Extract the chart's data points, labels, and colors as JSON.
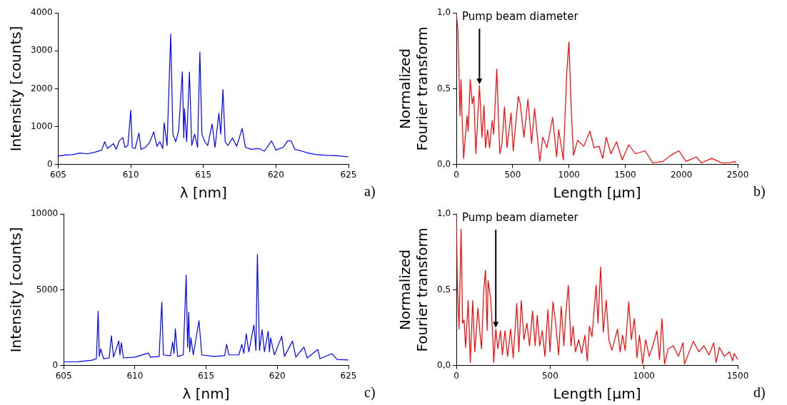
{
  "chart_data": [
    {
      "type": "line",
      "xlabel": "λ [nm]",
      "ylabel": "Intensity [counts]",
      "xlim": [
        605,
        625
      ],
      "ylim": [
        0,
        4000
      ],
      "xticks": [
        605,
        610,
        615,
        620,
        625
      ],
      "yticks": [
        0,
        1000,
        2000,
        3000,
        4000
      ],
      "grid": false,
      "legend": false,
      "marker": "none",
      "line_style": "solid",
      "annotations": [
        "a)"
      ],
      "series": [
        {
          "color": "#0000ff",
          "x": [
            605,
            605.5,
            606,
            606.5,
            607,
            607.5,
            608,
            608.2,
            608.4,
            608.8,
            609,
            609.2,
            609.45,
            609.6,
            609.8,
            610,
            610.1,
            610.3,
            610.56,
            610.7,
            611,
            611.3,
            611.58,
            611.8,
            612,
            612.2,
            612.3,
            612.5,
            612.75,
            612.9,
            613.1,
            613.3,
            613.55,
            613.65,
            613.7,
            613.85,
            614.04,
            614.2,
            614.4,
            614.6,
            614.76,
            614.9,
            615.1,
            615.3,
            615.6,
            615.8,
            616.07,
            616.2,
            616.35,
            616.5,
            616.7,
            617,
            617.3,
            617.67,
            617.9,
            618.3,
            618.8,
            619.2,
            619.7,
            620,
            620.5,
            620.8,
            621.05,
            621.3,
            621.8,
            622.2,
            622.8,
            623.5,
            624.2,
            625
          ],
          "values": [
            220,
            250,
            260,
            300,
            280,
            320,
            380,
            600,
            420,
            550,
            400,
            620,
            710,
            450,
            500,
            1430,
            450,
            420,
            830,
            400,
            450,
            580,
            860,
            480,
            600,
            420,
            1100,
            500,
            3440,
            800,
            600,
            900,
            2450,
            700,
            1470,
            600,
            2440,
            500,
            800,
            450,
            2970,
            800,
            600,
            500,
            1070,
            450,
            1350,
            800,
            1980,
            600,
            500,
            700,
            480,
            950,
            450,
            400,
            420,
            350,
            620,
            380,
            450,
            620,
            620,
            400,
            350,
            300,
            260,
            240,
            230,
            200
          ]
        }
      ]
    },
    {
      "type": "line",
      "xlabel": "Length [μm]",
      "ylabel": "Normalized\nFourier transform",
      "xlim": [
        0,
        2500
      ],
      "ylim": [
        0,
        1
      ],
      "xticks": [
        0,
        500,
        1000,
        1500,
        2000,
        2500
      ],
      "yticks": [
        {
          "value": 0,
          "label": "0,0"
        },
        {
          "value": 0.5,
          "label": "0,5"
        },
        {
          "value": 1,
          "label": "1,0"
        }
      ],
      "grid": false,
      "legend": false,
      "marker": "none",
      "line_style": "solid",
      "annotations": [
        "b)",
        {
          "text": "Pump beam diameter",
          "x": 205,
          "y": 0.52
        }
      ],
      "series": [
        {
          "color": "#ff0000",
          "x": [
            0,
            14,
            23,
            32,
            41,
            50,
            64,
            77,
            95,
            105,
            123,
            141,
            155,
            173,
            205,
            227,
            245,
            259,
            277,
            295,
            318,
            332,
            359,
            373,
            386,
            405,
            427,
            450,
            486,
            505,
            550,
            568,
            600,
            636,
            668,
            695,
            741,
            768,
            805,
            855,
            891,
            909,
            950,
            982,
            1000,
            1023,
            1041,
            1077,
            1132,
            1186,
            1223,
            1268,
            1300,
            1332,
            1373,
            1423,
            1473,
            1532,
            1591,
            1677,
            1745,
            1836,
            1905,
            1977,
            2041,
            2132,
            2177,
            2268,
            2359,
            2427,
            2473,
            2482
          ],
          "values": [
            1.0,
            0.87,
            0.61,
            0.32,
            0.56,
            0.33,
            0.04,
            0.16,
            0.32,
            0.22,
            0.56,
            0.4,
            0.45,
            0.07,
            0.52,
            0.18,
            0.39,
            0.11,
            0.23,
            0.11,
            0.29,
            0.2,
            0.63,
            0.32,
            0.07,
            0.14,
            0.38,
            0.11,
            0.34,
            0.09,
            0.45,
            0.4,
            0.18,
            0.43,
            0.14,
            0.37,
            0.02,
            0.18,
            0.11,
            0.31,
            0.05,
            0.23,
            0.03,
            0.62,
            0.81,
            0.32,
            0.06,
            0.16,
            0.12,
            0.22,
            0.11,
            0.12,
            0.04,
            0.18,
            0.07,
            0.15,
            0.03,
            0.13,
            0.07,
            0.09,
            0.01,
            0.02,
            0.06,
            0.09,
            0.02,
            0.05,
            0.01,
            0.04,
            0.01,
            0.01,
            0.02,
            0.01
          ]
        }
      ]
    },
    {
      "type": "line",
      "xlabel": "λ [nm]",
      "ylabel": "Intensity [counts]",
      "xlim": [
        605,
        625
      ],
      "ylim": [
        0,
        10000
      ],
      "xticks": [
        605,
        610,
        615,
        620,
        625
      ],
      "yticks": [
        0,
        5000,
        10000
      ],
      "grid": false,
      "legend": false,
      "marker": "none",
      "line_style": "solid",
      "annotations": [
        "c)"
      ],
      "series": [
        {
          "color": "#0000ff",
          "x": [
            605,
            606,
            607,
            607.3,
            607.42,
            607.5,
            607.6,
            607.8,
            608.2,
            608.35,
            608.5,
            608.87,
            608.95,
            609.05,
            609.2,
            610,
            610.95,
            611.1,
            611.7,
            611.89,
            612,
            612.5,
            612.65,
            612.75,
            612.84,
            613,
            613.4,
            613.6,
            613.7,
            613.78,
            613.85,
            613.93,
            614.1,
            614.5,
            614.7,
            615.5,
            616.3,
            616.44,
            616.6,
            617.3,
            617.51,
            617.65,
            617.82,
            618,
            618.36,
            618.5,
            618.6,
            618.75,
            618.93,
            619.1,
            619.36,
            619.45,
            619.53,
            619.8,
            620.31,
            620.5,
            621.07,
            621.3,
            621.87,
            622.1,
            622.85,
            623,
            623.84,
            624.2,
            625
          ],
          "values": [
            240,
            250,
            350,
            450,
            3590,
            600,
            1100,
            450,
            500,
            1970,
            550,
            1620,
            700,
            1500,
            500,
            550,
            820,
            550,
            600,
            4180,
            700,
            650,
            1550,
            800,
            2430,
            600,
            700,
            5970,
            1200,
            3520,
            900,
            1820,
            700,
            2960,
            700,
            600,
            650,
            1400,
            700,
            700,
            1400,
            800,
            2100,
            900,
            2680,
            1000,
            7340,
            1000,
            2370,
            900,
            2260,
            900,
            1820,
            700,
            1930,
            600,
            1610,
            550,
            1220,
            500,
            1060,
            450,
            780,
            400,
            360
          ]
        }
      ]
    },
    {
      "type": "line",
      "xlabel": "Length [μm]",
      "ylabel": "Normalized\nFourier transform",
      "xlim": [
        0,
        1500
      ],
      "ylim": [
        0,
        1
      ],
      "xticks": [
        0,
        500,
        1000,
        1500
      ],
      "yticks": [
        {
          "value": 0,
          "label": "0,0"
        },
        {
          "value": 0.5,
          "label": "0,5"
        },
        {
          "value": 1,
          "label": "1,0"
        }
      ],
      "grid": false,
      "legend": false,
      "marker": "none",
      "line_style": "solid",
      "annotations": [
        "d)",
        {
          "text": "Pump beam diameter",
          "x": 210,
          "y": 0.24
        }
      ],
      "series": [
        {
          "color": "#ff0000",
          "x": [
            0,
            5,
            14,
            25,
            33,
            41,
            49,
            63,
            74,
            87,
            98,
            115,
            125,
            134,
            145,
            155,
            164,
            169,
            183,
            194,
            199,
            210,
            221,
            235,
            245,
            259,
            273,
            289,
            303,
            322,
            333,
            346,
            360,
            376,
            390,
            406,
            420,
            431,
            444,
            458,
            472,
            488,
            499,
            515,
            529,
            545,
            559,
            573,
            584,
            597,
            611,
            622,
            635,
            652,
            668,
            685,
            698,
            709,
            723,
            745,
            755,
            769,
            783,
            799,
            813,
            829,
            859,
            873,
            886,
            900,
            919,
            933,
            949,
            963,
            976,
            993,
            1009,
            1028,
            1047,
            1069,
            1083,
            1096,
            1110,
            1129,
            1156,
            1184,
            1208,
            1216,
            1238,
            1263,
            1293,
            1320,
            1347,
            1372,
            1385,
            1402,
            1429,
            1456,
            1473,
            1481,
            1500
          ],
          "values": [
            1.0,
            0.53,
            0.24,
            0.9,
            0.28,
            0.3,
            0.12,
            0.43,
            0.02,
            0.43,
            0.09,
            0.38,
            0.22,
            0.11,
            0.48,
            0.63,
            0.23,
            0.56,
            0.44,
            0.19,
            0.02,
            0.24,
            0.11,
            0.23,
            0.07,
            0.23,
            0.06,
            0.24,
            0.05,
            0.41,
            0.09,
            0.43,
            0.17,
            0.28,
            0.13,
            0.36,
            0.13,
            0.33,
            0.13,
            0.23,
            0.06,
            0.37,
            0.09,
            0.42,
            0.28,
            0.07,
            0.39,
            0.13,
            0.35,
            0.53,
            0.13,
            0.26,
            0.09,
            0.17,
            0.08,
            0.2,
            0.03,
            0.26,
            0.19,
            0.53,
            0.28,
            0.65,
            0.22,
            0.43,
            0.17,
            0.1,
            0.24,
            0.09,
            0.2,
            0.1,
            0.42,
            0.17,
            0.31,
            0.05,
            0.2,
            0.01,
            0.17,
            0.06,
            0.13,
            0.23,
            0.04,
            0.31,
            0.01,
            0.11,
            0.13,
            0.06,
            0.15,
            0.01,
            0.08,
            0.16,
            0.09,
            0.13,
            0.07,
            0.15,
            0.02,
            0.12,
            0.06,
            0.09,
            0.03,
            0.08,
            0.04
          ]
        }
      ]
    }
  ]
}
